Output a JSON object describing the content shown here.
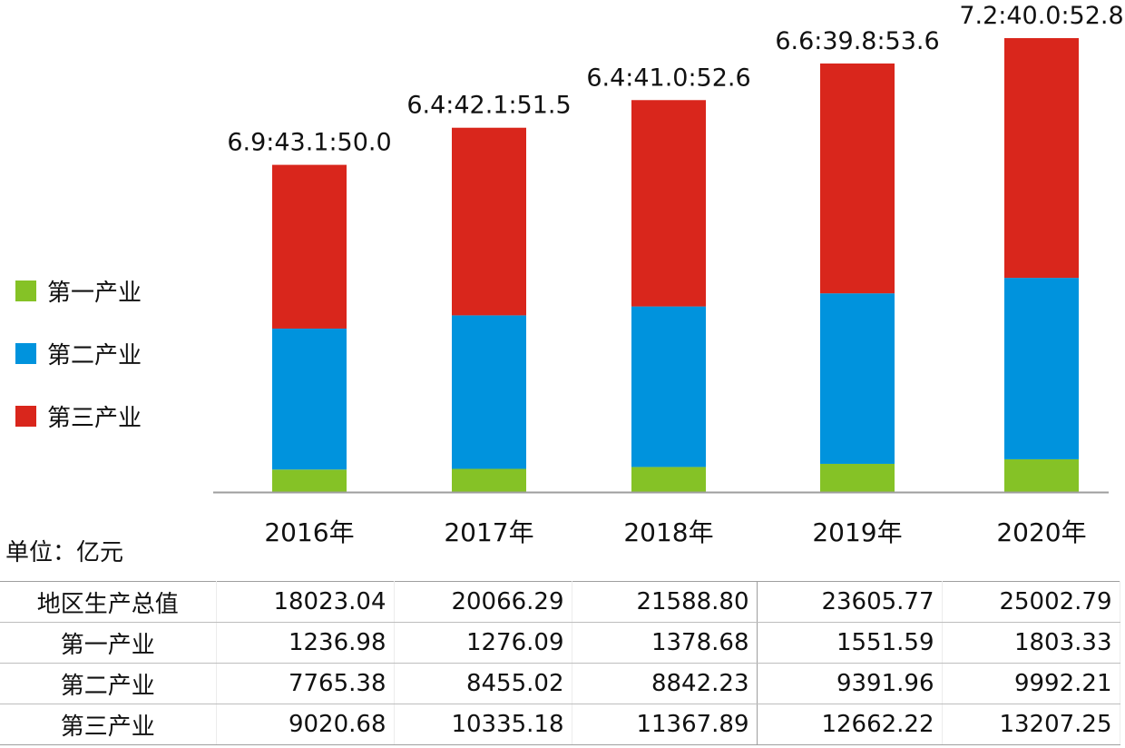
{
  "chart_data": {
    "type": "bar",
    "stacked": true,
    "categories": [
      "2016年",
      "2017年",
      "2018年",
      "2019年",
      "2020年"
    ],
    "series": [
      {
        "name": "第一产业",
        "color": "#85c226",
        "values": [
          1236.98,
          1276.09,
          1378.68,
          1551.59,
          1803.33
        ]
      },
      {
        "name": "第二产业",
        "color": "#0093dd",
        "values": [
          7765.38,
          8455.02,
          8842.23,
          9391.96,
          9992.21
        ]
      },
      {
        "name": "第三产业",
        "color": "#d9261c",
        "values": [
          9020.68,
          10335.18,
          11367.89,
          12662.22,
          13207.25
        ]
      }
    ],
    "bar_labels": [
      "6.9:43.1:50.0",
      "6.4:42.1:51.5",
      "6.4:41.0:52.6",
      "6.6:39.8:53.6",
      "7.2:40.0:52.8"
    ],
    "ylim": [
      0,
      25002.79
    ],
    "grid": false,
    "legend_position": "left"
  },
  "unit_label": "单位：亿元",
  "table": {
    "rows": [
      {
        "label": "地区生产总值",
        "values": [
          "18023.04",
          "20066.29",
          "21588.80",
          "23605.77",
          "25002.79"
        ]
      },
      {
        "label": "第一产业",
        "values": [
          "1236.98",
          "1276.09",
          "1378.68",
          "1551.59",
          "1803.33"
        ]
      },
      {
        "label": "第二产业",
        "values": [
          "7765.38",
          "8455.02",
          "8842.23",
          "9391.96",
          "9992.21"
        ]
      },
      {
        "label": "第三产业",
        "values": [
          "9020.68",
          "10335.18",
          "11367.89",
          "12662.22",
          "13207.25"
        ]
      }
    ]
  }
}
